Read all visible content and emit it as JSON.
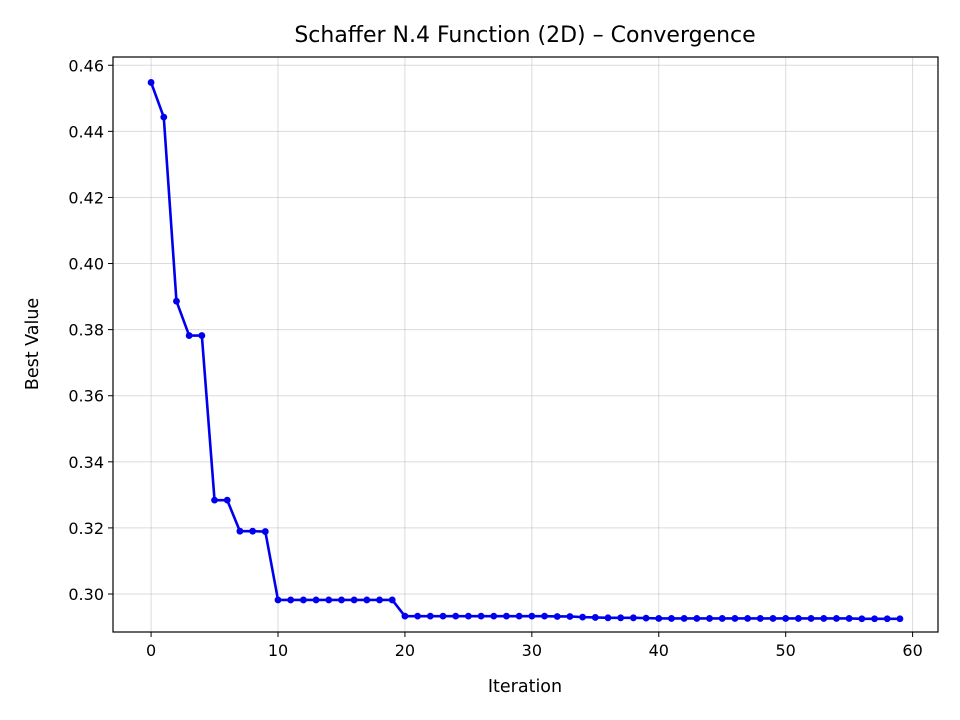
{
  "chart_data": {
    "type": "line",
    "title": "Schaffer N.4 Function (2D) – Convergence",
    "xlabel": "Iteration",
    "ylabel": "Best Value",
    "xlim": [
      -3,
      62
    ],
    "ylim": [
      0.2885,
      0.4625
    ],
    "x_ticks": [
      0,
      10,
      20,
      30,
      40,
      50,
      60
    ],
    "y_ticks": [
      0.3,
      0.32,
      0.34,
      0.36,
      0.38,
      0.4,
      0.42,
      0.44,
      0.46
    ],
    "y_tick_labels": [
      "0.30",
      "0.32",
      "0.34",
      "0.36",
      "0.38",
      "0.40",
      "0.42",
      "0.44",
      "0.46"
    ],
    "grid": true,
    "line_color": "#0000ee",
    "marker": "circle",
    "series": [
      {
        "x": [
          0,
          1,
          2,
          3,
          4,
          5,
          6,
          7,
          8,
          9,
          10,
          11,
          12,
          13,
          14,
          15,
          16,
          17,
          18,
          19,
          20,
          21,
          22,
          23,
          24,
          25,
          26,
          27,
          28,
          29,
          30,
          31,
          32,
          33,
          34,
          35,
          36,
          37,
          38,
          39,
          40,
          41,
          42,
          43,
          44,
          45,
          46,
          47,
          48,
          49,
          50,
          51,
          52,
          53,
          54,
          55,
          56,
          57,
          58,
          59
        ],
        "values": [
          0.4548,
          0.4443,
          0.3886,
          0.3782,
          0.3782,
          0.3284,
          0.3284,
          0.319,
          0.319,
          0.3189,
          0.2982,
          0.2982,
          0.2982,
          0.2982,
          0.2982,
          0.2982,
          0.2982,
          0.2982,
          0.2982,
          0.2982,
          0.2933,
          0.2933,
          0.2933,
          0.2933,
          0.2933,
          0.2933,
          0.2933,
          0.2933,
          0.2933,
          0.2933,
          0.2933,
          0.2933,
          0.2932,
          0.2932,
          0.293,
          0.2929,
          0.2928,
          0.2928,
          0.2928,
          0.2927,
          0.2926,
          0.2926,
          0.2926,
          0.2926,
          0.2926,
          0.2926,
          0.2926,
          0.2926,
          0.2926,
          0.2926,
          0.2926,
          0.2926,
          0.2926,
          0.2926,
          0.2926,
          0.2926,
          0.2925,
          0.2925,
          0.2925,
          0.2925
        ]
      }
    ]
  }
}
